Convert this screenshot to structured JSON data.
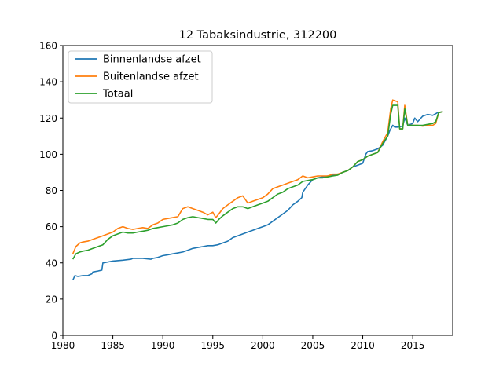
{
  "chart_data": {
    "type": "line",
    "title": "12 Tabaksindustrie, 312200",
    "xlabel": "",
    "ylabel": "",
    "xlim": [
      1980,
      2019
    ],
    "ylim": [
      0,
      160
    ],
    "xticks": [
      1980,
      1985,
      1990,
      1995,
      2000,
      2005,
      2010,
      2015
    ],
    "yticks": [
      0,
      20,
      40,
      60,
      80,
      100,
      120,
      140,
      160
    ],
    "grid": false,
    "legend": "top-left",
    "series": [
      {
        "name": "Binnenlandse afzet",
        "color": "#1f77b4",
        "x": [
          1981.0,
          1981.2,
          1981.5,
          1982.0,
          1982.5,
          1982.9,
          1983.0,
          1983.5,
          1983.9,
          1984.0,
          1984.5,
          1985.0,
          1986.0,
          1986.8,
          1987.0,
          1988.0,
          1988.8,
          1989.0,
          1989.5,
          1990.0,
          1990.5,
          1991.0,
          1991.5,
          1992.0,
          1992.5,
          1993.0,
          1993.5,
          1994.0,
          1994.5,
          1995.0,
          1995.5,
          1996.0,
          1996.5,
          1997.0,
          1997.5,
          1998.0,
          1998.5,
          1999.0,
          1999.5,
          2000.0,
          2000.5,
          2001.0,
          2001.5,
          2002.0,
          2002.5,
          2003.0,
          2003.5,
          2003.9,
          2004.0,
          2004.5,
          2005.0,
          2005.5,
          2006.0,
          2006.5,
          2007.0,
          2007.5,
          2008.0,
          2008.5,
          2009.0,
          2009.5,
          2010.0,
          2010.3,
          2010.5,
          2011.0,
          2011.5,
          2012.0,
          2012.5,
          2012.7,
          2013.0,
          2013.2,
          2013.5,
          2014.0,
          2014.2,
          2014.5,
          2015.0,
          2015.2,
          2015.5,
          2016.0,
          2016.5,
          2017.0,
          2017.5,
          2018.0
        ],
        "values": [
          30.5,
          33,
          32.5,
          33,
          33,
          34,
          35,
          35.5,
          36,
          40,
          40.5,
          41,
          41.5,
          42,
          42.5,
          42.5,
          42,
          42.5,
          43,
          44,
          44.5,
          45,
          45.5,
          46,
          47,
          48,
          48.5,
          49,
          49.5,
          49.5,
          50,
          51,
          52,
          54,
          55,
          56,
          57,
          58,
          59,
          60,
          61,
          63,
          65,
          67,
          69,
          72,
          74,
          76,
          79,
          83,
          86,
          87,
          87.5,
          88,
          88.5,
          89,
          90,
          91,
          93,
          94,
          95,
          100,
          101.5,
          102,
          103,
          105,
          110,
          113,
          116,
          115,
          115,
          115.5,
          120,
          116,
          117,
          120,
          118,
          121,
          122,
          121.5,
          123,
          123.5
        ]
      },
      {
        "name": "Buitenlandse afzet",
        "color": "#ff7f0e",
        "x": [
          1981.0,
          1981.3,
          1981.7,
          1982.0,
          1982.5,
          1983.0,
          1983.5,
          1984.0,
          1984.5,
          1985.0,
          1985.5,
          1986.0,
          1986.5,
          1987.0,
          1987.5,
          1988.0,
          1988.5,
          1989.0,
          1989.5,
          1990.0,
          1990.5,
          1991.0,
          1991.5,
          1992.0,
          1992.5,
          1993.0,
          1993.5,
          1994.0,
          1994.5,
          1995.0,
          1995.3,
          1995.6,
          1996.0,
          1996.5,
          1997.0,
          1997.5,
          1998.0,
          1998.5,
          1999.0,
          1999.5,
          2000.0,
          2000.5,
          2001.0,
          2001.5,
          2002.0,
          2002.5,
          2003.0,
          2003.5,
          2004.0,
          2004.5,
          2005.0,
          2005.5,
          2006.0,
          2006.5,
          2007.0,
          2007.5,
          2008.0,
          2008.5,
          2009.0,
          2009.5,
          2010.0,
          2010.5,
          2011.0,
          2011.5,
          2012.0,
          2012.5,
          2012.8,
          2013.0,
          2013.5,
          2013.7,
          2014.0,
          2014.2,
          2014.5,
          2014.7,
          2015.0,
          2015.5,
          2016.0,
          2016.5,
          2017.0,
          2017.3,
          2017.6,
          2018.0
        ],
        "values": [
          45,
          49,
          51,
          51.5,
          52,
          53,
          54,
          55,
          56,
          57,
          59,
          60,
          59,
          58.5,
          59,
          59.5,
          59,
          61,
          62,
          64,
          64.5,
          65,
          65.5,
          70,
          71,
          70,
          69,
          68,
          66.5,
          68,
          65,
          67,
          70,
          72,
          74,
          76,
          77,
          73,
          74,
          75,
          76,
          78,
          81,
          82,
          83,
          84,
          85,
          86,
          88,
          87,
          87.5,
          88,
          88,
          88,
          89,
          89,
          90,
          91,
          93,
          96,
          97,
          99,
          100,
          101,
          107,
          112,
          125,
          130,
          129,
          114,
          114,
          127,
          116,
          116,
          116,
          116,
          115.5,
          116,
          116,
          117,
          123,
          123.5
        ]
      },
      {
        "name": "Totaal",
        "color": "#2ca02c",
        "x": [
          1981.0,
          1981.3,
          1981.7,
          1982.0,
          1982.5,
          1983.0,
          1983.5,
          1984.0,
          1984.5,
          1985.0,
          1985.5,
          1986.0,
          1986.5,
          1987.0,
          1987.5,
          1988.0,
          1988.5,
          1989.0,
          1989.5,
          1990.0,
          1990.5,
          1991.0,
          1991.5,
          1992.0,
          1992.5,
          1993.0,
          1993.5,
          1994.0,
          1994.5,
          1995.0,
          1995.3,
          1995.6,
          1996.0,
          1996.5,
          1997.0,
          1997.5,
          1998.0,
          1998.5,
          1999.0,
          1999.5,
          2000.0,
          2000.5,
          2001.0,
          2001.5,
          2002.0,
          2002.5,
          2003.0,
          2003.5,
          2004.0,
          2004.5,
          2005.0,
          2005.5,
          2006.0,
          2006.5,
          2007.0,
          2007.5,
          2008.0,
          2008.5,
          2009.0,
          2009.5,
          2010.0,
          2010.5,
          2011.0,
          2011.5,
          2012.0,
          2012.5,
          2012.8,
          2013.0,
          2013.5,
          2013.7,
          2014.0,
          2014.2,
          2014.5,
          2014.7,
          2015.0,
          2015.5,
          2016.0,
          2016.5,
          2017.0,
          2017.3,
          2017.6,
          2018.0
        ],
        "values": [
          42,
          45,
          46,
          46.5,
          47,
          48,
          49,
          50,
          53,
          55,
          56,
          57,
          56.5,
          56.5,
          57,
          57.5,
          58,
          59,
          59.5,
          60,
          60.5,
          61,
          62,
          64,
          65,
          65.5,
          65,
          64.5,
          64,
          64,
          62,
          64,
          66,
          68,
          70,
          71,
          71,
          70,
          71,
          72,
          73,
          74,
          76,
          78,
          79,
          81,
          82,
          83,
          85,
          85.5,
          86,
          87,
          87,
          87.5,
          88,
          88.5,
          90,
          91,
          93,
          96,
          97,
          99,
          100,
          101,
          106,
          110,
          122,
          127,
          127,
          114,
          114,
          125,
          116,
          116,
          116,
          116,
          116,
          116.5,
          117,
          118,
          123,
          123.5
        ]
      }
    ]
  }
}
